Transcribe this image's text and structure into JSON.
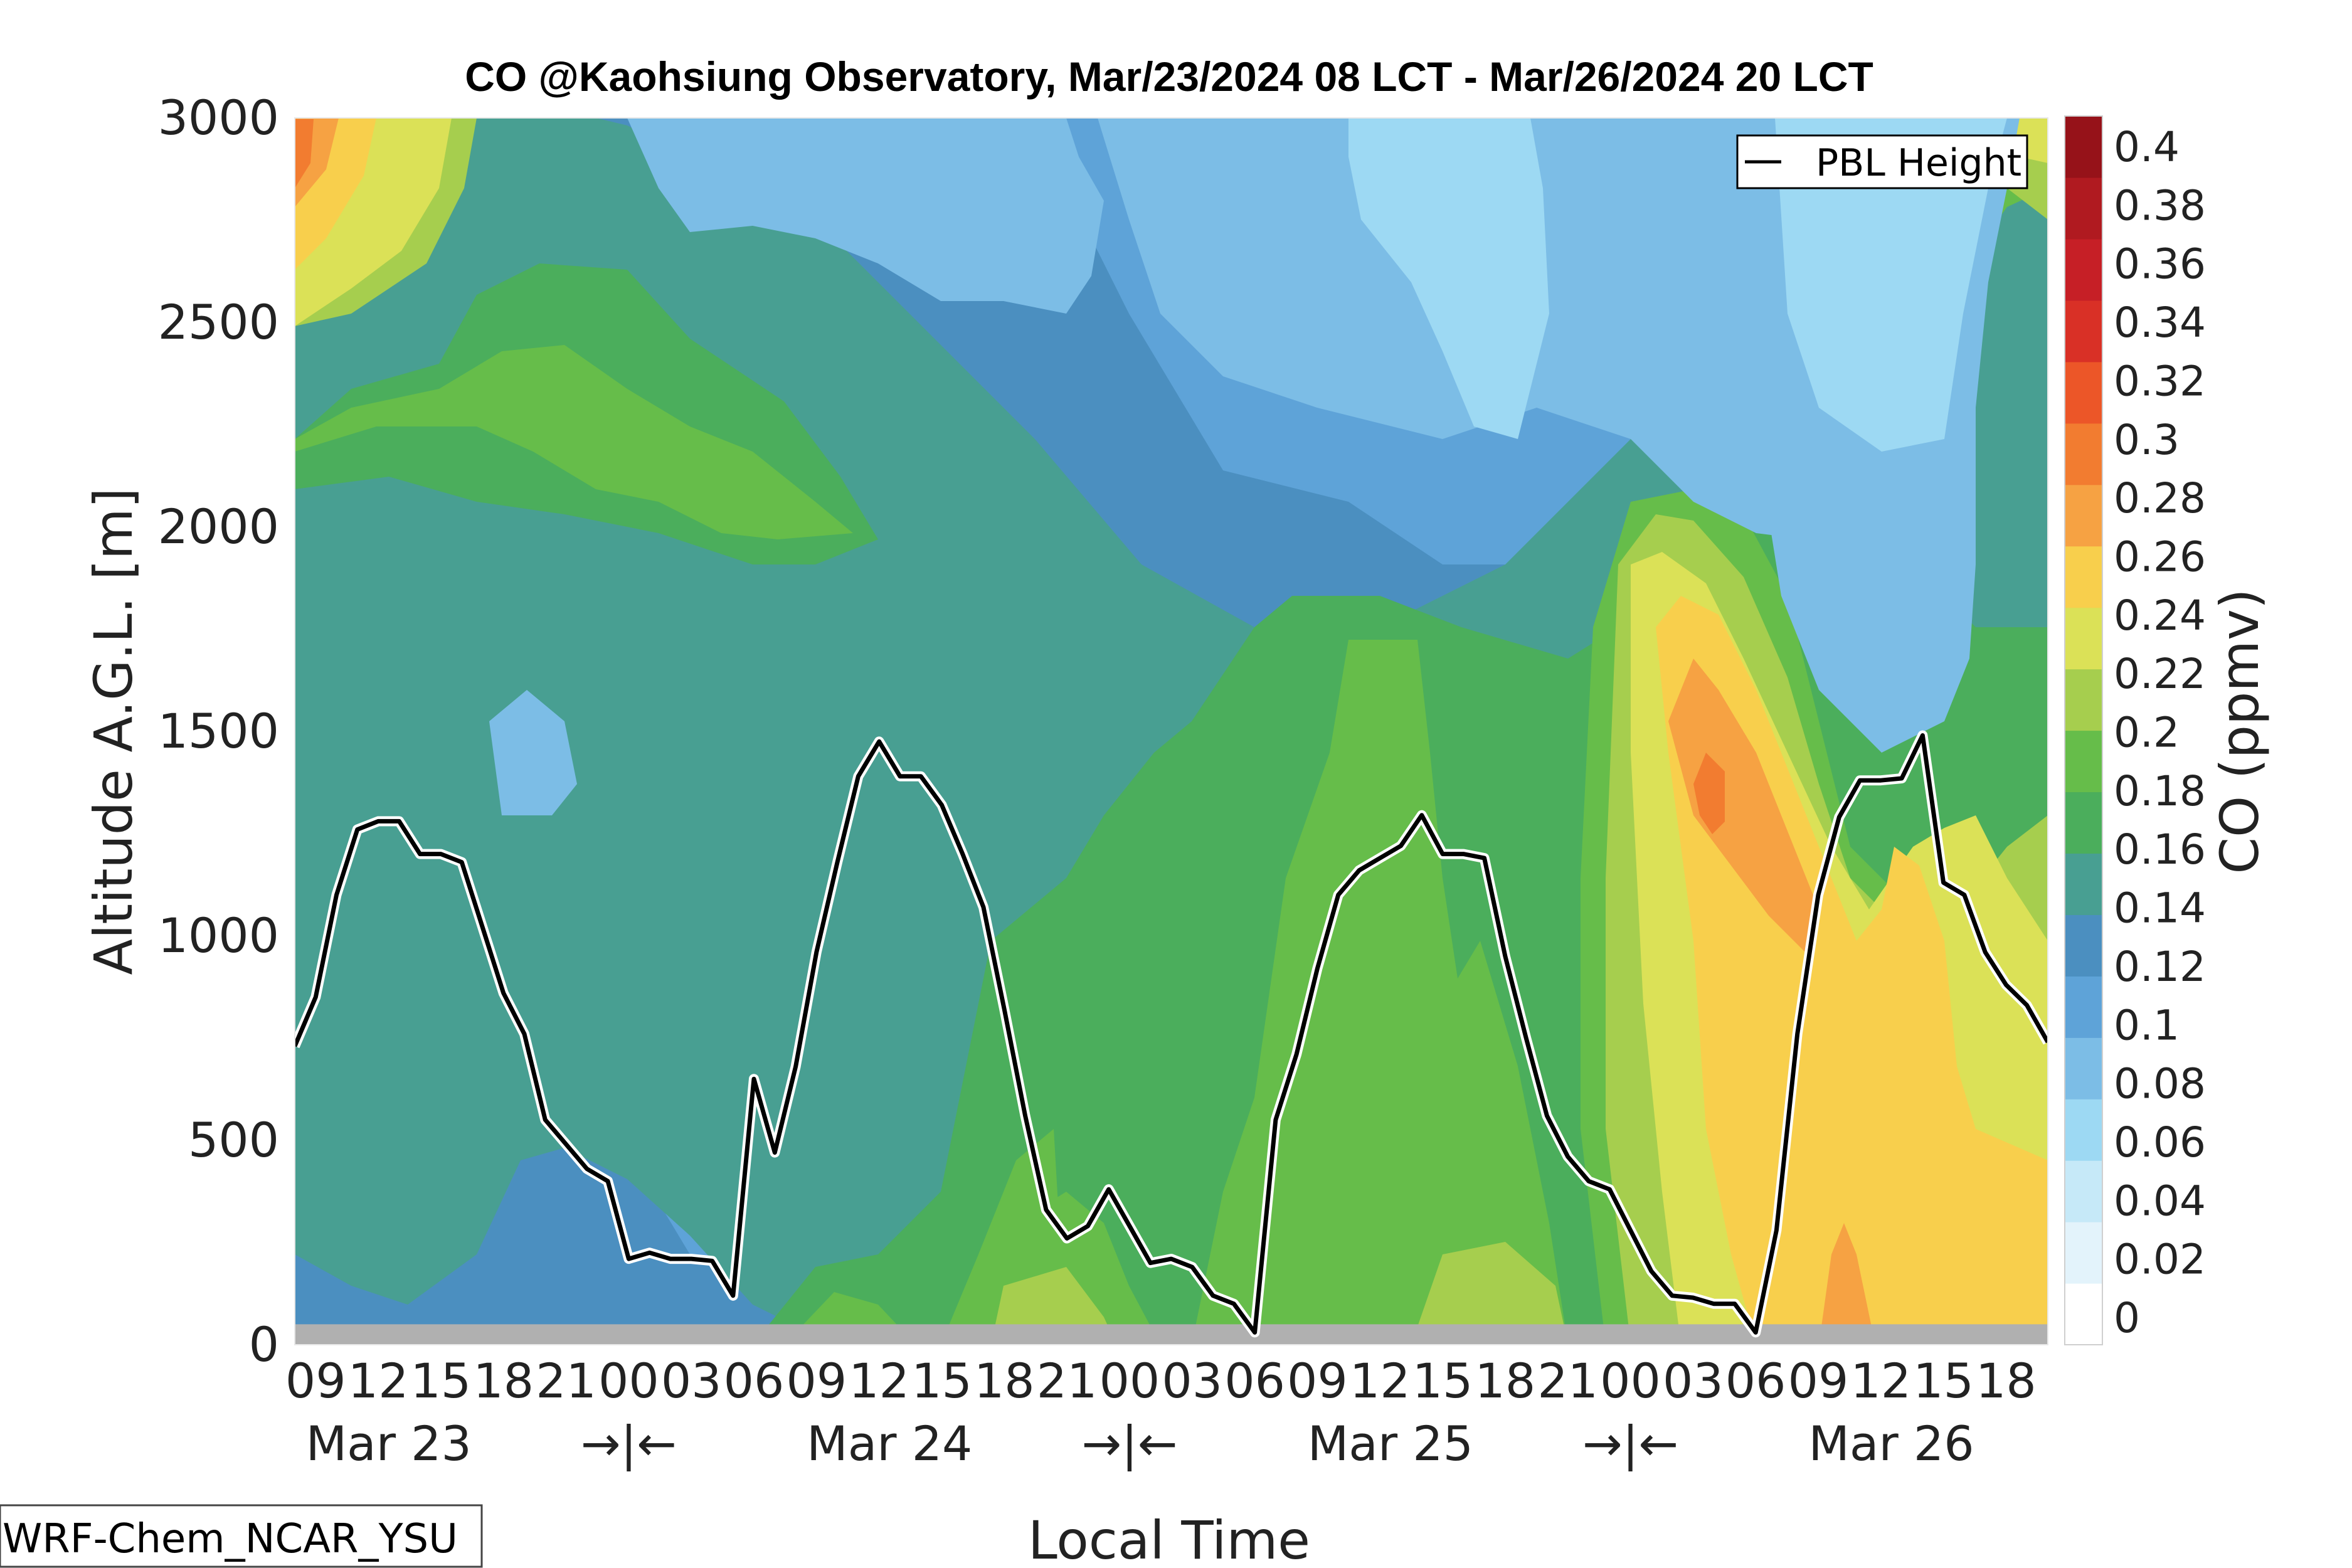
{
  "chart_data": {
    "type": "heatmap",
    "title": "CO @Kaohsiung Observatory, Mar/23/2024 08 LCT - Mar/26/2024 20 LCT",
    "xlabel": "Local Time",
    "ylabel": "Altitude A.G.L. [m]",
    "colorbar_label": "CO (ppmv)",
    "ylim": [
      0,
      3000
    ],
    "y_ticks": [
      "0",
      "500",
      "1000",
      "1500",
      "2000",
      "2500",
      "3000"
    ],
    "x_hour_labels": [
      "09",
      "12",
      "15",
      "18",
      "21",
      "00",
      "03",
      "06",
      "09",
      "12",
      "15",
      "18",
      "21",
      "00",
      "03",
      "06",
      "09",
      "12",
      "15",
      "18",
      "21",
      "00",
      "03",
      "06",
      "09",
      "12",
      "15",
      "18"
    ],
    "x_day_labels": [
      "Mar 23",
      "→|←",
      "Mar 24",
      "→|←",
      "Mar 25",
      "→|←",
      "Mar 26"
    ],
    "colorbar_ticks": [
      "0",
      "0.02",
      "0.04",
      "0.06",
      "0.08",
      "0.1",
      "0.12",
      "0.14",
      "0.16",
      "0.18",
      "0.2",
      "0.22",
      "0.24",
      "0.26",
      "0.28",
      "0.3",
      "0.32",
      "0.34",
      "0.36",
      "0.38",
      "0.4"
    ],
    "colorbar_colors": [
      "#ffffff",
      "#e3f3fb",
      "#c6e9f8",
      "#9dd9f3",
      "#7cbde6",
      "#5ea3d8",
      "#4b8fc0",
      "#489f92",
      "#4bae5c",
      "#66bd4a",
      "#a6ce4e",
      "#dbe157",
      "#f8cf4c",
      "#f6a243",
      "#f27c30",
      "#ec5628",
      "#d93026",
      "#c61f26",
      "#b01a20",
      "#961219"
    ],
    "legend": {
      "label": "PBL Height",
      "placement": "top-right"
    },
    "pbl_height": {
      "x_hours": [
        0,
        1,
        2,
        3,
        4,
        5,
        6,
        7,
        8,
        9,
        10,
        11,
        12,
        13,
        14,
        15,
        16,
        17,
        18,
        19,
        20,
        21,
        22,
        23,
        24,
        25,
        26,
        27,
        28,
        29,
        30,
        31,
        32,
        33,
        34,
        35,
        36,
        37,
        38,
        39,
        40,
        41,
        42,
        43,
        44,
        45,
        46,
        47,
        48,
        49,
        50,
        51,
        52,
        53,
        54,
        55,
        56,
        57,
        58,
        59,
        60,
        61,
        62,
        63,
        64,
        65,
        66,
        67,
        68,
        69,
        70,
        71,
        72,
        73,
        74,
        75,
        76,
        77,
        78,
        79,
        80,
        81,
        82,
        83,
        84
      ],
      "y_m": [
        730,
        850,
        1100,
        1260,
        1280,
        1280,
        1200,
        1200,
        1180,
        1020,
        860,
        760,
        550,
        490,
        430,
        400,
        210,
        225,
        210,
        210,
        205,
        120,
        650,
        470,
        680,
        960,
        1180,
        1390,
        1475,
        1390,
        1390,
        1320,
        1200,
        1070,
        820,
        560,
        330,
        260,
        290,
        380,
        290,
        200,
        210,
        190,
        120,
        100,
        30,
        550,
        710,
        920,
        1100,
        1160,
        1190,
        1220,
        1295,
        1200,
        1200,
        1190,
        950,
        750,
        560,
        460,
        400,
        380,
        280,
        180,
        120,
        115,
        100,
        100,
        30,
        280,
        760,
        1100,
        1290,
        1380,
        1380,
        1385,
        1490,
        1130,
        1100,
        960,
        880,
        830,
        740
      ]
    },
    "surface_band": {
      "top_m": 50
    },
    "annotation": "WRF-Chem_NCAR_YSU"
  }
}
